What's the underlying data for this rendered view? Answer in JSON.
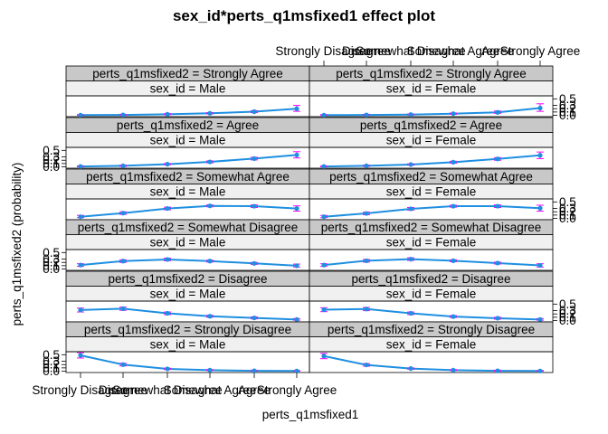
{
  "chart_data": {
    "type": "line",
    "title": "sex_id*perts_q1msfixed1 effect plot",
    "xlabel": "perts_q1msfixed1",
    "ylabel": "perts_q1msfixed2 (probability)",
    "categories": [
      "Strongly Disagree",
      "Disagree",
      "Somewhat Disagree",
      "Somewhat Agree",
      "Agree",
      "Strongly Agree"
    ],
    "y_ticks": [
      "0.0",
      "0.1",
      "0.2",
      "0.3",
      "0.5"
    ],
    "ylim": [
      0,
      0.55
    ],
    "outcome_levels": [
      "Strongly Agree",
      "Agree",
      "Somewhat Agree",
      "Somewhat Disagree",
      "Disagree",
      "Strongly Disagree"
    ],
    "panels": [
      {
        "outcome_strip": "perts_q1msfixed2 = Strongly Agree",
        "sex_strip": "sex_id = Male",
        "values": [
          0.005,
          0.01,
          0.03,
          0.06,
          0.11,
          0.2
        ],
        "lower": [
          0.0,
          0.0,
          0.015,
          0.04,
          0.08,
          0.12
        ],
        "upper": [
          0.02,
          0.03,
          0.05,
          0.08,
          0.14,
          0.3
        ]
      },
      {
        "outcome_strip": "perts_q1msfixed2 = Strongly Agree",
        "sex_strip": "sex_id = Female",
        "values": [
          0.005,
          0.01,
          0.02,
          0.05,
          0.09,
          0.22
        ],
        "lower": [
          0.0,
          0.0,
          0.01,
          0.03,
          0.06,
          0.12
        ],
        "upper": [
          0.02,
          0.03,
          0.04,
          0.07,
          0.13,
          0.35
        ]
      },
      {
        "outcome_strip": "perts_q1msfixed2 = Agree",
        "sex_strip": "sex_id = Male",
        "values": [
          0.01,
          0.03,
          0.08,
          0.15,
          0.25,
          0.36
        ],
        "lower": [
          0.0,
          0.01,
          0.06,
          0.12,
          0.21,
          0.27
        ],
        "upper": [
          0.03,
          0.05,
          0.1,
          0.18,
          0.29,
          0.46
        ]
      },
      {
        "outcome_strip": "perts_q1msfixed2 = Agree",
        "sex_strip": "sex_id = Female",
        "values": [
          0.01,
          0.03,
          0.07,
          0.14,
          0.24,
          0.35
        ],
        "lower": [
          0.0,
          0.01,
          0.05,
          0.11,
          0.2,
          0.25
        ],
        "upper": [
          0.03,
          0.05,
          0.09,
          0.17,
          0.28,
          0.45
        ]
      },
      {
        "outcome_strip": "perts_q1msfixed2 = Somewhat Agree",
        "sex_strip": "sex_id = Male",
        "values": [
          0.05,
          0.16,
          0.3,
          0.38,
          0.37,
          0.3
        ],
        "lower": [
          0.02,
          0.12,
          0.26,
          0.35,
          0.33,
          0.22
        ],
        "upper": [
          0.09,
          0.2,
          0.34,
          0.41,
          0.41,
          0.38
        ]
      },
      {
        "outcome_strip": "perts_q1msfixed2 = Somewhat Agree",
        "sex_strip": "sex_id = Female",
        "values": [
          0.05,
          0.15,
          0.29,
          0.37,
          0.37,
          0.31
        ],
        "lower": [
          0.02,
          0.11,
          0.25,
          0.34,
          0.33,
          0.22
        ],
        "upper": [
          0.09,
          0.19,
          0.33,
          0.4,
          0.41,
          0.4
        ]
      },
      {
        "outcome_strip": "perts_q1msfixed2 = Somewhat Disagree",
        "sex_strip": "sex_id = Male",
        "values": [
          0.12,
          0.24,
          0.29,
          0.24,
          0.17,
          0.1
        ],
        "lower": [
          0.08,
          0.2,
          0.25,
          0.21,
          0.14,
          0.06
        ],
        "upper": [
          0.16,
          0.28,
          0.33,
          0.27,
          0.2,
          0.15
        ]
      },
      {
        "outcome_strip": "perts_q1msfixed2 = Somewhat Disagree",
        "sex_strip": "sex_id = Female",
        "values": [
          0.12,
          0.25,
          0.3,
          0.25,
          0.18,
          0.11
        ],
        "lower": [
          0.08,
          0.21,
          0.26,
          0.22,
          0.15,
          0.06
        ],
        "upper": [
          0.16,
          0.29,
          0.34,
          0.28,
          0.21,
          0.16
        ]
      },
      {
        "outcome_strip": "perts_q1msfixed2 = Disagree",
        "sex_strip": "sex_id = Male",
        "values": [
          0.32,
          0.36,
          0.22,
          0.13,
          0.08,
          0.03
        ],
        "lower": [
          0.26,
          0.31,
          0.18,
          0.1,
          0.05,
          0.01
        ],
        "upper": [
          0.38,
          0.41,
          0.26,
          0.16,
          0.11,
          0.06
        ]
      },
      {
        "outcome_strip": "perts_q1msfixed2 = Disagree",
        "sex_strip": "sex_id = Female",
        "values": [
          0.33,
          0.35,
          0.22,
          0.12,
          0.07,
          0.03
        ],
        "lower": [
          0.27,
          0.3,
          0.18,
          0.09,
          0.04,
          0.01
        ],
        "upper": [
          0.39,
          0.4,
          0.26,
          0.15,
          0.1,
          0.06
        ]
      },
      {
        "outcome_strip": "perts_q1msfixed2 = Strongly Disagree",
        "sex_strip": "sex_id = Male",
        "values": [
          0.48,
          0.2,
          0.07,
          0.03,
          0.01,
          0.005
        ],
        "lower": [
          0.4,
          0.16,
          0.05,
          0.02,
          0.0,
          0.0
        ],
        "upper": [
          0.56,
          0.24,
          0.09,
          0.05,
          0.03,
          0.02
        ]
      },
      {
        "outcome_strip": "perts_q1msfixed2 = Strongly Disagree",
        "sex_strip": "sex_id = Female",
        "values": [
          0.46,
          0.19,
          0.08,
          0.03,
          0.01,
          0.005
        ],
        "lower": [
          0.38,
          0.15,
          0.06,
          0.02,
          0.0,
          0.0
        ],
        "upper": [
          0.54,
          0.23,
          0.1,
          0.05,
          0.03,
          0.02
        ]
      }
    ],
    "colors": {
      "line": "#1f8fe0",
      "errorbar": "#ff00ff",
      "strip_top": "#c8c8c8",
      "strip_bottom": "#f0f0f0"
    },
    "grid": false,
    "legend": "none"
  }
}
